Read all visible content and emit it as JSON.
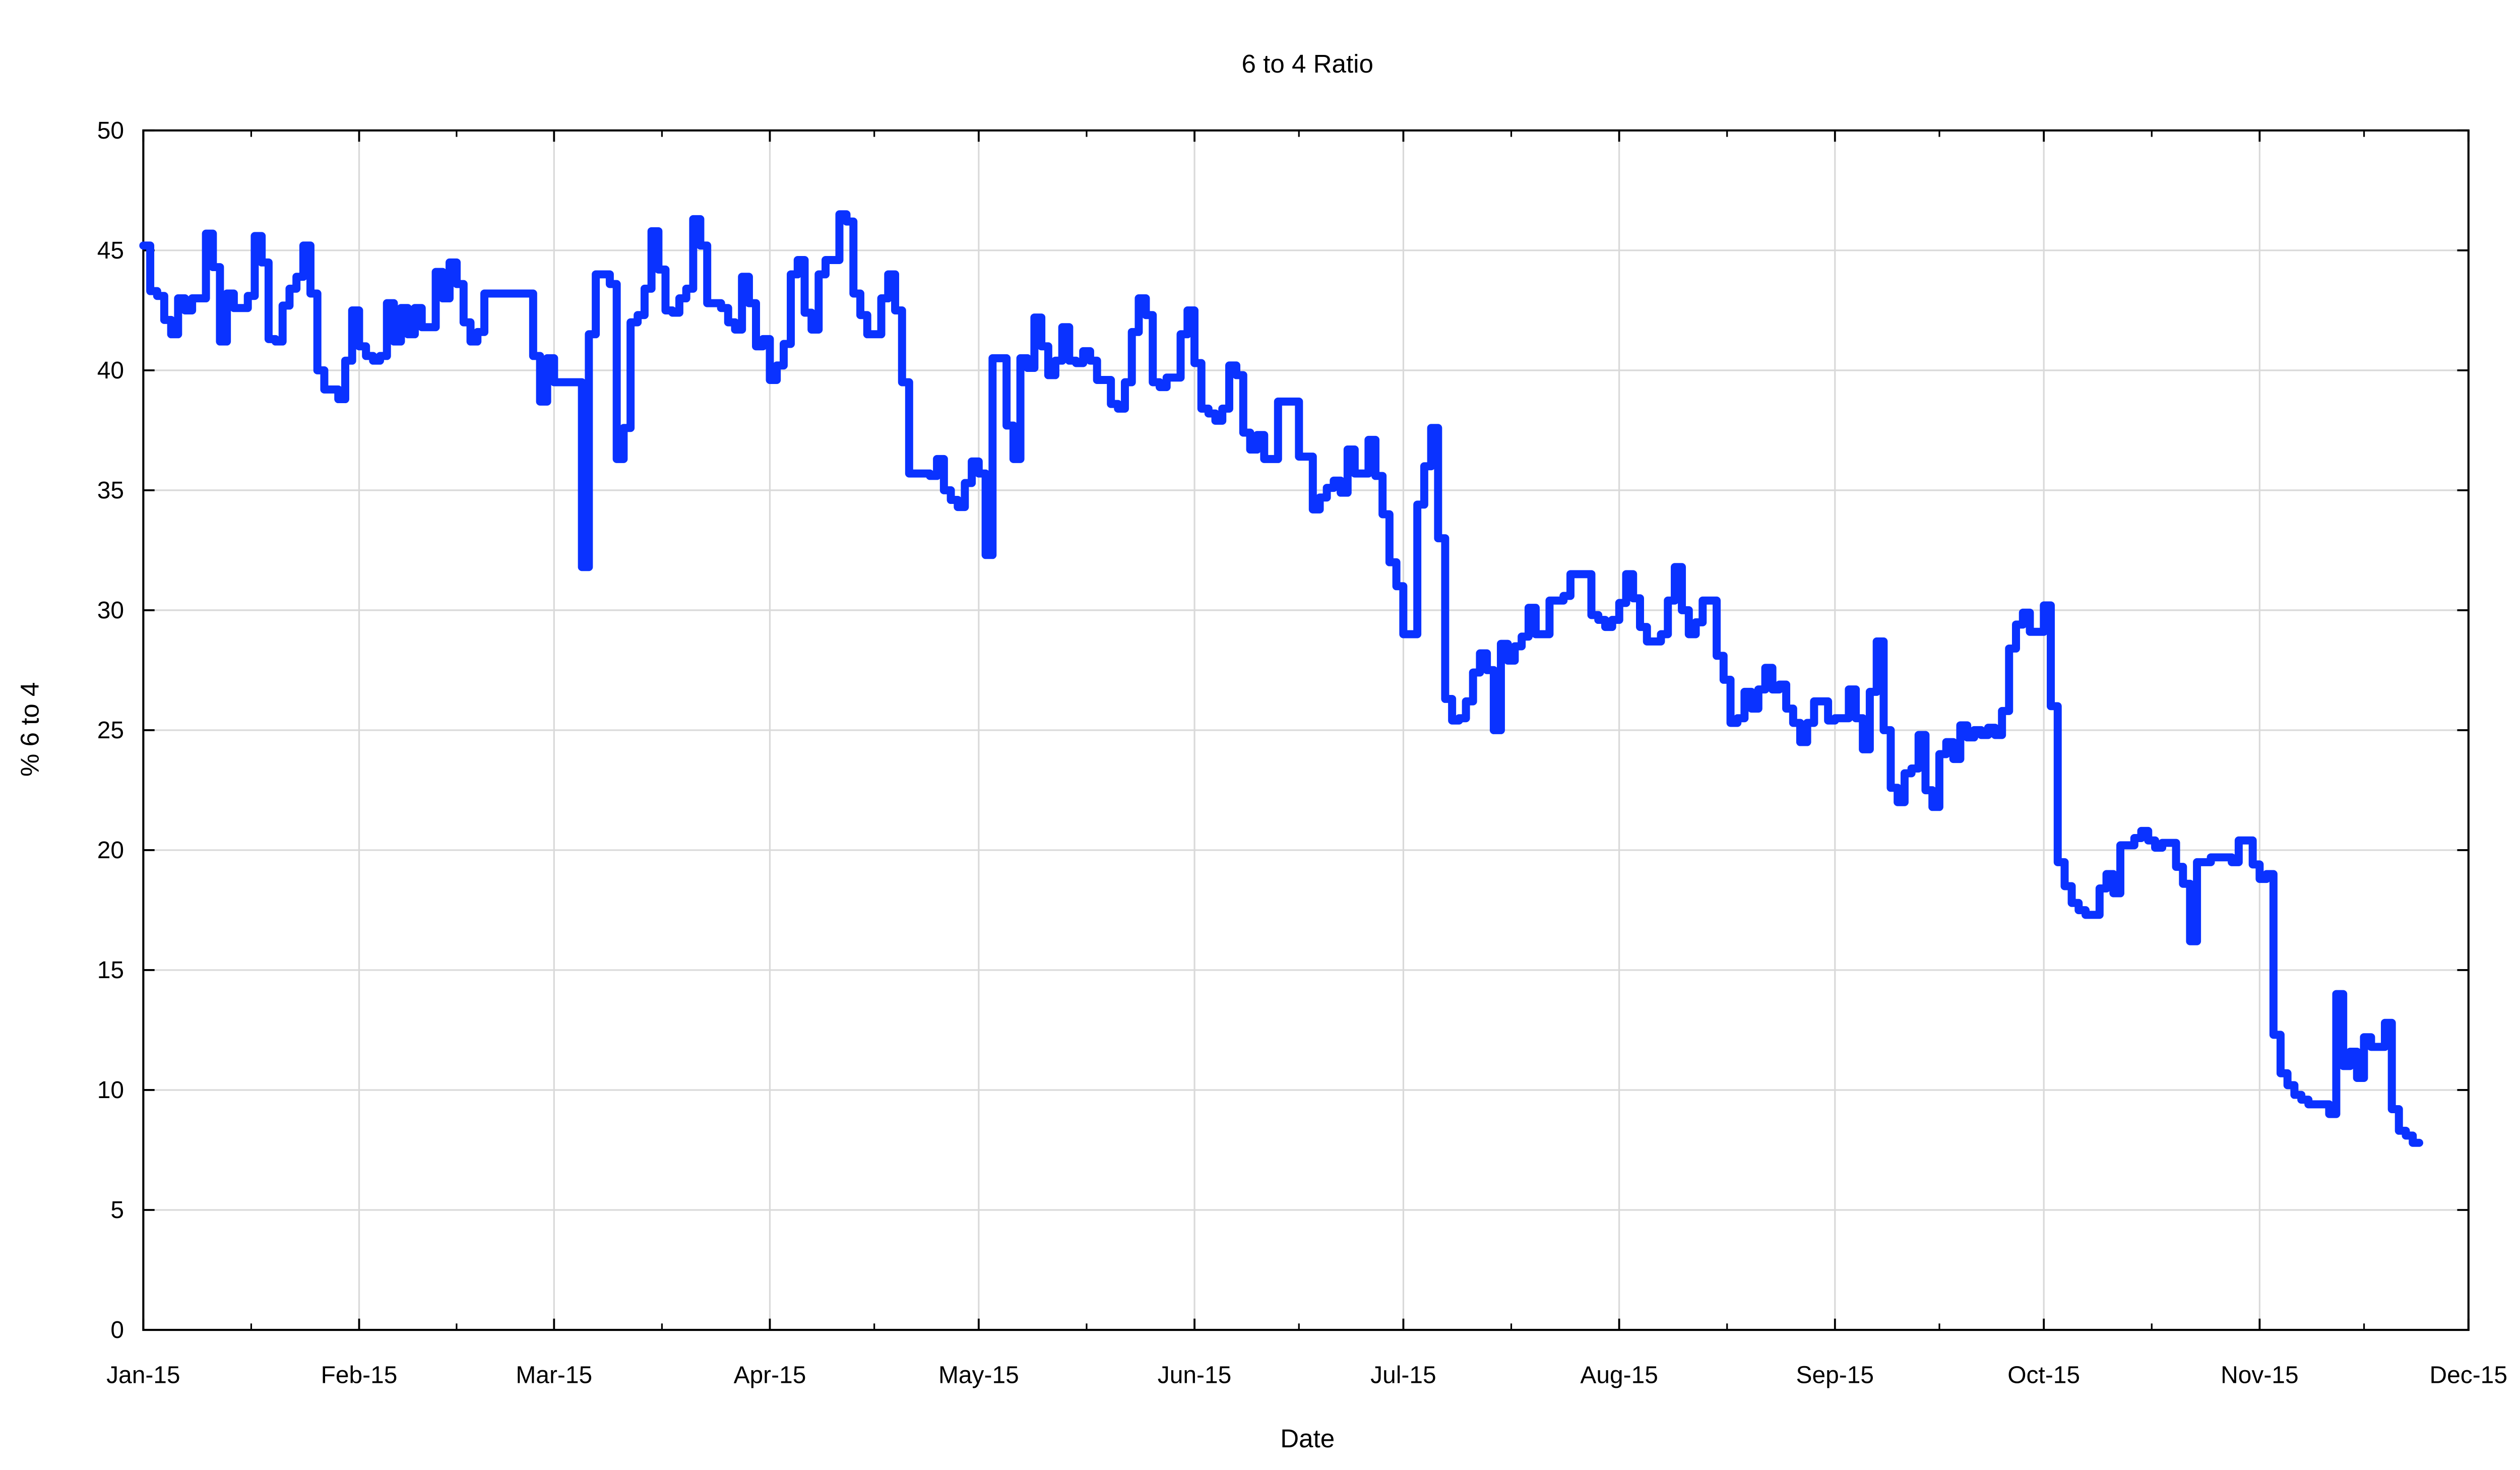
{
  "chart_data": {
    "type": "line",
    "step": true,
    "title": "6 to 4 Ratio",
    "xlabel": "Date",
    "ylabel": "% 6 to 4",
    "xlim": [
      "2015-01-01",
      "2015-12-01"
    ],
    "ylim": [
      0,
      50
    ],
    "grid": true,
    "legend": "none",
    "line_color": "#0a32ff",
    "x_ticks": [
      {
        "date": "2015-01-01",
        "label": "Jan-15"
      },
      {
        "date": "2015-02-01",
        "label": "Feb-15"
      },
      {
        "date": "2015-03-01",
        "label": "Mar-15"
      },
      {
        "date": "2015-04-01",
        "label": "Apr-15"
      },
      {
        "date": "2015-05-01",
        "label": "May-15"
      },
      {
        "date": "2015-06-01",
        "label": "Jun-15"
      },
      {
        "date": "2015-07-01",
        "label": "Jul-15"
      },
      {
        "date": "2015-08-01",
        "label": "Aug-15"
      },
      {
        "date": "2015-09-01",
        "label": "Sep-15"
      },
      {
        "date": "2015-10-01",
        "label": "Oct-15"
      },
      {
        "date": "2015-11-01",
        "label": "Nov-15"
      },
      {
        "date": "2015-12-01",
        "label": "Dec-15"
      }
    ],
    "y_ticks": [
      0,
      5,
      10,
      15,
      20,
      25,
      30,
      35,
      40,
      45,
      50
    ],
    "points": [
      [
        "2015-01-01",
        45.2
      ],
      [
        "2015-01-02",
        43.3
      ],
      [
        "2015-01-03",
        43.1
      ],
      [
        "2015-01-04",
        42.1
      ],
      [
        "2015-01-05",
        41.5
      ],
      [
        "2015-01-06",
        43
      ],
      [
        "2015-01-07",
        42.5
      ],
      [
        "2015-01-08",
        43
      ],
      [
        "2015-01-10",
        45.7
      ],
      [
        "2015-01-11",
        44.3
      ],
      [
        "2015-01-12",
        41.2
      ],
      [
        "2015-01-13",
        43.2
      ],
      [
        "2015-01-14",
        42.6
      ],
      [
        "2015-01-16",
        43.1
      ],
      [
        "2015-01-17",
        45.6
      ],
      [
        "2015-01-18",
        44.5
      ],
      [
        "2015-01-19",
        41.3
      ],
      [
        "2015-01-20",
        41.2
      ],
      [
        "2015-01-21",
        42.7
      ],
      [
        "2015-01-22",
        43.4
      ],
      [
        "2015-01-23",
        43.9
      ],
      [
        "2015-01-24",
        45.2
      ],
      [
        "2015-01-25",
        43.2
      ],
      [
        "2015-01-26",
        40
      ],
      [
        "2015-01-27",
        39.2
      ],
      [
        "2015-01-29",
        38.8
      ],
      [
        "2015-01-30",
        40.4
      ],
      [
        "2015-01-31",
        42.5
      ],
      [
        "2015-02-01",
        41
      ],
      [
        "2015-02-02",
        40.6
      ],
      [
        "2015-02-03",
        40.4
      ],
      [
        "2015-02-04",
        40.6
      ],
      [
        "2015-02-05",
        42.8
      ],
      [
        "2015-02-06",
        41.2
      ],
      [
        "2015-02-07",
        42.6
      ],
      [
        "2015-02-08",
        41.5
      ],
      [
        "2015-02-09",
        42.6
      ],
      [
        "2015-02-10",
        41.8
      ],
      [
        "2015-02-12",
        44.1
      ],
      [
        "2015-02-13",
        43
      ],
      [
        "2015-02-14",
        44.5
      ],
      [
        "2015-02-15",
        43.6
      ],
      [
        "2015-02-16",
        42
      ],
      [
        "2015-02-17",
        41.2
      ],
      [
        "2015-02-18",
        41.6
      ],
      [
        "2015-02-19",
        43.2
      ],
      [
        "2015-02-26",
        40.6
      ],
      [
        "2015-02-27",
        38.7
      ],
      [
        "2015-02-28",
        40.5
      ],
      [
        "2015-03-01",
        39.5
      ],
      [
        "2015-03-05",
        31.8
      ],
      [
        "2015-03-06",
        41.5
      ],
      [
        "2015-03-07",
        44
      ],
      [
        "2015-03-09",
        43.6
      ],
      [
        "2015-03-10",
        36.3
      ],
      [
        "2015-03-11",
        37.6
      ],
      [
        "2015-03-12",
        42
      ],
      [
        "2015-03-13",
        42.3
      ],
      [
        "2015-03-14",
        43.4
      ],
      [
        "2015-03-15",
        45.8
      ],
      [
        "2015-03-16",
        44.2
      ],
      [
        "2015-03-17",
        42.5
      ],
      [
        "2015-03-18",
        42.4
      ],
      [
        "2015-03-19",
        43
      ],
      [
        "2015-03-20",
        43.4
      ],
      [
        "2015-03-21",
        46.3
      ],
      [
        "2015-03-22",
        45.2
      ],
      [
        "2015-03-23",
        42.8
      ],
      [
        "2015-03-25",
        42.6
      ],
      [
        "2015-03-26",
        42
      ],
      [
        "2015-03-27",
        41.7
      ],
      [
        "2015-03-28",
        43.9
      ],
      [
        "2015-03-29",
        42.8
      ],
      [
        "2015-03-30",
        41
      ],
      [
        "2015-03-31",
        41.3
      ],
      [
        "2015-04-01",
        39.6
      ],
      [
        "2015-04-02",
        40.2
      ],
      [
        "2015-04-03",
        41.1
      ],
      [
        "2015-04-04",
        44
      ],
      [
        "2015-04-05",
        44.6
      ],
      [
        "2015-04-06",
        42.4
      ],
      [
        "2015-04-07",
        41.7
      ],
      [
        "2015-04-08",
        44
      ],
      [
        "2015-04-09",
        44.6
      ],
      [
        "2015-04-11",
        46.5
      ],
      [
        "2015-04-12",
        46.2
      ],
      [
        "2015-04-13",
        43.2
      ],
      [
        "2015-04-14",
        42.3
      ],
      [
        "2015-04-15",
        41.5
      ],
      [
        "2015-04-17",
        43
      ],
      [
        "2015-04-18",
        44
      ],
      [
        "2015-04-19",
        42.5
      ],
      [
        "2015-04-20",
        39.5
      ],
      [
        "2015-04-21",
        35.7
      ],
      [
        "2015-04-24",
        35.6
      ],
      [
        "2015-04-25",
        36.3
      ],
      [
        "2015-04-26",
        35
      ],
      [
        "2015-04-27",
        34.6
      ],
      [
        "2015-04-28",
        34.3
      ],
      [
        "2015-04-29",
        35.3
      ],
      [
        "2015-04-30",
        36.2
      ],
      [
        "2015-05-01",
        35.7
      ],
      [
        "2015-05-02",
        32.3
      ],
      [
        "2015-05-03",
        40.5
      ],
      [
        "2015-05-05",
        37.7
      ],
      [
        "2015-05-06",
        36.3
      ],
      [
        "2015-05-07",
        40.5
      ],
      [
        "2015-05-08",
        40.1
      ],
      [
        "2015-05-09",
        42.2
      ],
      [
        "2015-05-10",
        41
      ],
      [
        "2015-05-11",
        39.8
      ],
      [
        "2015-05-12",
        40.4
      ],
      [
        "2015-05-13",
        41.8
      ],
      [
        "2015-05-14",
        40.4
      ],
      [
        "2015-05-15",
        40.3
      ],
      [
        "2015-05-16",
        40.8
      ],
      [
        "2015-05-17",
        40.4
      ],
      [
        "2015-05-18",
        39.6
      ],
      [
        "2015-05-20",
        38.6
      ],
      [
        "2015-05-21",
        38.4
      ],
      [
        "2015-05-22",
        39.5
      ],
      [
        "2015-05-23",
        41.6
      ],
      [
        "2015-05-24",
        43
      ],
      [
        "2015-05-25",
        42.3
      ],
      [
        "2015-05-26",
        39.5
      ],
      [
        "2015-05-27",
        39.3
      ],
      [
        "2015-05-28",
        39.7
      ],
      [
        "2015-05-30",
        41.5
      ],
      [
        "2015-05-31",
        42.5
      ],
      [
        "2015-06-01",
        40.3
      ],
      [
        "2015-06-02",
        38.4
      ],
      [
        "2015-06-03",
        38.2
      ],
      [
        "2015-06-04",
        37.9
      ],
      [
        "2015-06-05",
        38.4
      ],
      [
        "2015-06-06",
        40.2
      ],
      [
        "2015-06-07",
        39.8
      ],
      [
        "2015-06-08",
        37.4
      ],
      [
        "2015-06-09",
        36.7
      ],
      [
        "2015-06-10",
        37.3
      ],
      [
        "2015-06-11",
        36.3
      ],
      [
        "2015-06-13",
        38.7
      ],
      [
        "2015-06-16",
        36.4
      ],
      [
        "2015-06-18",
        34.2
      ],
      [
        "2015-06-19",
        34.7
      ],
      [
        "2015-06-20",
        35.1
      ],
      [
        "2015-06-21",
        35.4
      ],
      [
        "2015-06-22",
        34.9
      ],
      [
        "2015-06-23",
        36.7
      ],
      [
        "2015-06-24",
        35.7
      ],
      [
        "2015-06-26",
        37.1
      ],
      [
        "2015-06-27",
        35.6
      ],
      [
        "2015-06-28",
        34
      ],
      [
        "2015-06-29",
        32
      ],
      [
        "2015-06-30",
        31
      ],
      [
        "2015-07-01",
        29
      ],
      [
        "2015-07-03",
        34.4
      ],
      [
        "2015-07-04",
        36
      ],
      [
        "2015-07-05",
        37.6
      ],
      [
        "2015-07-06",
        33
      ],
      [
        "2015-07-07",
        26.3
      ],
      [
        "2015-07-08",
        25.4
      ],
      [
        "2015-07-09",
        25.5
      ],
      [
        "2015-07-10",
        26.2
      ],
      [
        "2015-07-11",
        27.4
      ],
      [
        "2015-07-12",
        28.2
      ],
      [
        "2015-07-13",
        27.5
      ],
      [
        "2015-07-14",
        25
      ],
      [
        "2015-07-15",
        28.6
      ],
      [
        "2015-07-16",
        27.9
      ],
      [
        "2015-07-17",
        28.5
      ],
      [
        "2015-07-18",
        28.9
      ],
      [
        "2015-07-19",
        30.1
      ],
      [
        "2015-07-20",
        29
      ],
      [
        "2015-07-22",
        30.4
      ],
      [
        "2015-07-24",
        30.6
      ],
      [
        "2015-07-25",
        31.5
      ],
      [
        "2015-07-28",
        29.8
      ],
      [
        "2015-07-29",
        29.6
      ],
      [
        "2015-07-30",
        29.3
      ],
      [
        "2015-07-31",
        29.6
      ],
      [
        "2015-08-01",
        30.3
      ],
      [
        "2015-08-02",
        31.5
      ],
      [
        "2015-08-03",
        30.5
      ],
      [
        "2015-08-04",
        29.3
      ],
      [
        "2015-08-05",
        28.7
      ],
      [
        "2015-08-07",
        29
      ],
      [
        "2015-08-08",
        30.4
      ],
      [
        "2015-08-09",
        31.8
      ],
      [
        "2015-08-10",
        30
      ],
      [
        "2015-08-11",
        29
      ],
      [
        "2015-08-12",
        29.5
      ],
      [
        "2015-08-13",
        30.4
      ],
      [
        "2015-08-15",
        28.1
      ],
      [
        "2015-08-16",
        27.1
      ],
      [
        "2015-08-17",
        25.3
      ],
      [
        "2015-08-18",
        25.5
      ],
      [
        "2015-08-19",
        26.6
      ],
      [
        "2015-08-20",
        25.9
      ],
      [
        "2015-08-21",
        26.7
      ],
      [
        "2015-08-22",
        27.6
      ],
      [
        "2015-08-23",
        26.7
      ],
      [
        "2015-08-24",
        26.9
      ],
      [
        "2015-08-25",
        25.9
      ],
      [
        "2015-08-26",
        25.3
      ],
      [
        "2015-08-27",
        24.5
      ],
      [
        "2015-08-28",
        25.3
      ],
      [
        "2015-08-29",
        26.2
      ],
      [
        "2015-08-31",
        25.4
      ],
      [
        "2015-09-01",
        25.5
      ],
      [
        "2015-09-03",
        26.7
      ],
      [
        "2015-09-04",
        25.5
      ],
      [
        "2015-09-05",
        24.2
      ],
      [
        "2015-09-06",
        26.6
      ],
      [
        "2015-09-07",
        28.7
      ],
      [
        "2015-09-08",
        25
      ],
      [
        "2015-09-09",
        22.6
      ],
      [
        "2015-09-10",
        22
      ],
      [
        "2015-09-11",
        23.2
      ],
      [
        "2015-09-12",
        23.4
      ],
      [
        "2015-09-13",
        24.8
      ],
      [
        "2015-09-14",
        22.5
      ],
      [
        "2015-09-15",
        21.8
      ],
      [
        "2015-09-16",
        24
      ],
      [
        "2015-09-17",
        24.5
      ],
      [
        "2015-09-18",
        23.8
      ],
      [
        "2015-09-19",
        25.2
      ],
      [
        "2015-09-20",
        24.7
      ],
      [
        "2015-09-21",
        25
      ],
      [
        "2015-09-22",
        24.8
      ],
      [
        "2015-09-23",
        25.1
      ],
      [
        "2015-09-24",
        24.8
      ],
      [
        "2015-09-25",
        25.8
      ],
      [
        "2015-09-26",
        28.4
      ],
      [
        "2015-09-27",
        29.4
      ],
      [
        "2015-09-28",
        29.9
      ],
      [
        "2015-09-29",
        29.1
      ],
      [
        "2015-10-01",
        30.2
      ],
      [
        "2015-10-02",
        26
      ],
      [
        "2015-10-03",
        19.5
      ],
      [
        "2015-10-04",
        18.5
      ],
      [
        "2015-10-05",
        17.8
      ],
      [
        "2015-10-06",
        17.5
      ],
      [
        "2015-10-07",
        17.3
      ],
      [
        "2015-10-09",
        18.4
      ],
      [
        "2015-10-10",
        19
      ],
      [
        "2015-10-11",
        18.2
      ],
      [
        "2015-10-12",
        20.2
      ],
      [
        "2015-10-14",
        20.5
      ],
      [
        "2015-10-15",
        20.8
      ],
      [
        "2015-10-16",
        20.4
      ],
      [
        "2015-10-17",
        20.1
      ],
      [
        "2015-10-18",
        20.3
      ],
      [
        "2015-10-20",
        19.3
      ],
      [
        "2015-10-21",
        18.6
      ],
      [
        "2015-10-22",
        16.2
      ],
      [
        "2015-10-23",
        19.5
      ],
      [
        "2015-10-25",
        19.7
      ],
      [
        "2015-10-28",
        19.5
      ],
      [
        "2015-10-29",
        20.4
      ],
      [
        "2015-10-31",
        19.4
      ],
      [
        "2015-11-01",
        18.8
      ],
      [
        "2015-11-02",
        19
      ],
      [
        "2015-11-03",
        12.3
      ],
      [
        "2015-11-04",
        10.7
      ],
      [
        "2015-11-05",
        10.2
      ],
      [
        "2015-11-06",
        9.8
      ],
      [
        "2015-11-07",
        9.6
      ],
      [
        "2015-11-08",
        9.4
      ],
      [
        "2015-11-11",
        9
      ],
      [
        "2015-11-12",
        14
      ],
      [
        "2015-11-13",
        11
      ],
      [
        "2015-11-14",
        11.6
      ],
      [
        "2015-11-15",
        10.5
      ],
      [
        "2015-11-16",
        12.2
      ],
      [
        "2015-11-17",
        11.8
      ],
      [
        "2015-11-19",
        12.8
      ],
      [
        "2015-11-20",
        9.2
      ],
      [
        "2015-11-21",
        8.3
      ],
      [
        "2015-11-22",
        8.1
      ],
      [
        "2015-11-23",
        7.8
      ]
    ]
  }
}
